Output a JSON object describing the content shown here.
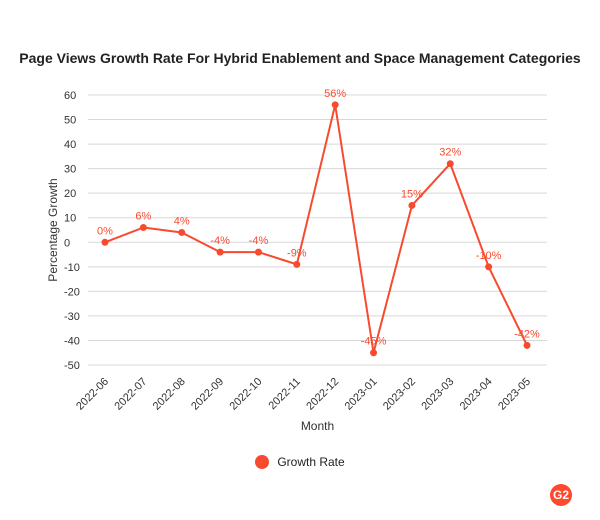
{
  "colors": {
    "series": "#f74b2f",
    "grid": "#d8d8d8",
    "text": "#333333",
    "brand": "#ff492c"
  },
  "brand": {
    "icon": "g2-logo-icon",
    "label": "G2"
  },
  "chart_data": {
    "type": "line",
    "title": "Page Views Growth Rate For Hybrid Enablement and Space Management Categories",
    "xlabel": "Month",
    "ylabel": "Percentage Growth",
    "ylim": [
      -50,
      60
    ],
    "yticks": [
      60,
      50,
      40,
      30,
      20,
      10,
      0,
      -10,
      -20,
      -30,
      -40,
      -50
    ],
    "grid": true,
    "legend_position": "bottom",
    "categories": [
      "2022-06",
      "2022-07",
      "2022-08",
      "2022-09",
      "2022-10",
      "2022-11",
      "2022-12",
      "2023-01",
      "2023-02",
      "2023-03",
      "2023-04",
      "2023-05"
    ],
    "series": [
      {
        "name": "Growth Rate",
        "values": [
          0,
          6,
          4,
          -4,
          -4,
          -9,
          56,
          -45,
          15,
          32,
          -10,
          -42
        ],
        "labels": [
          "0%",
          "6%",
          "4%",
          "-4%",
          "-4%",
          "-9%",
          "56%",
          "-45%",
          "15%",
          "32%",
          "-10%",
          "-42%"
        ]
      }
    ]
  }
}
